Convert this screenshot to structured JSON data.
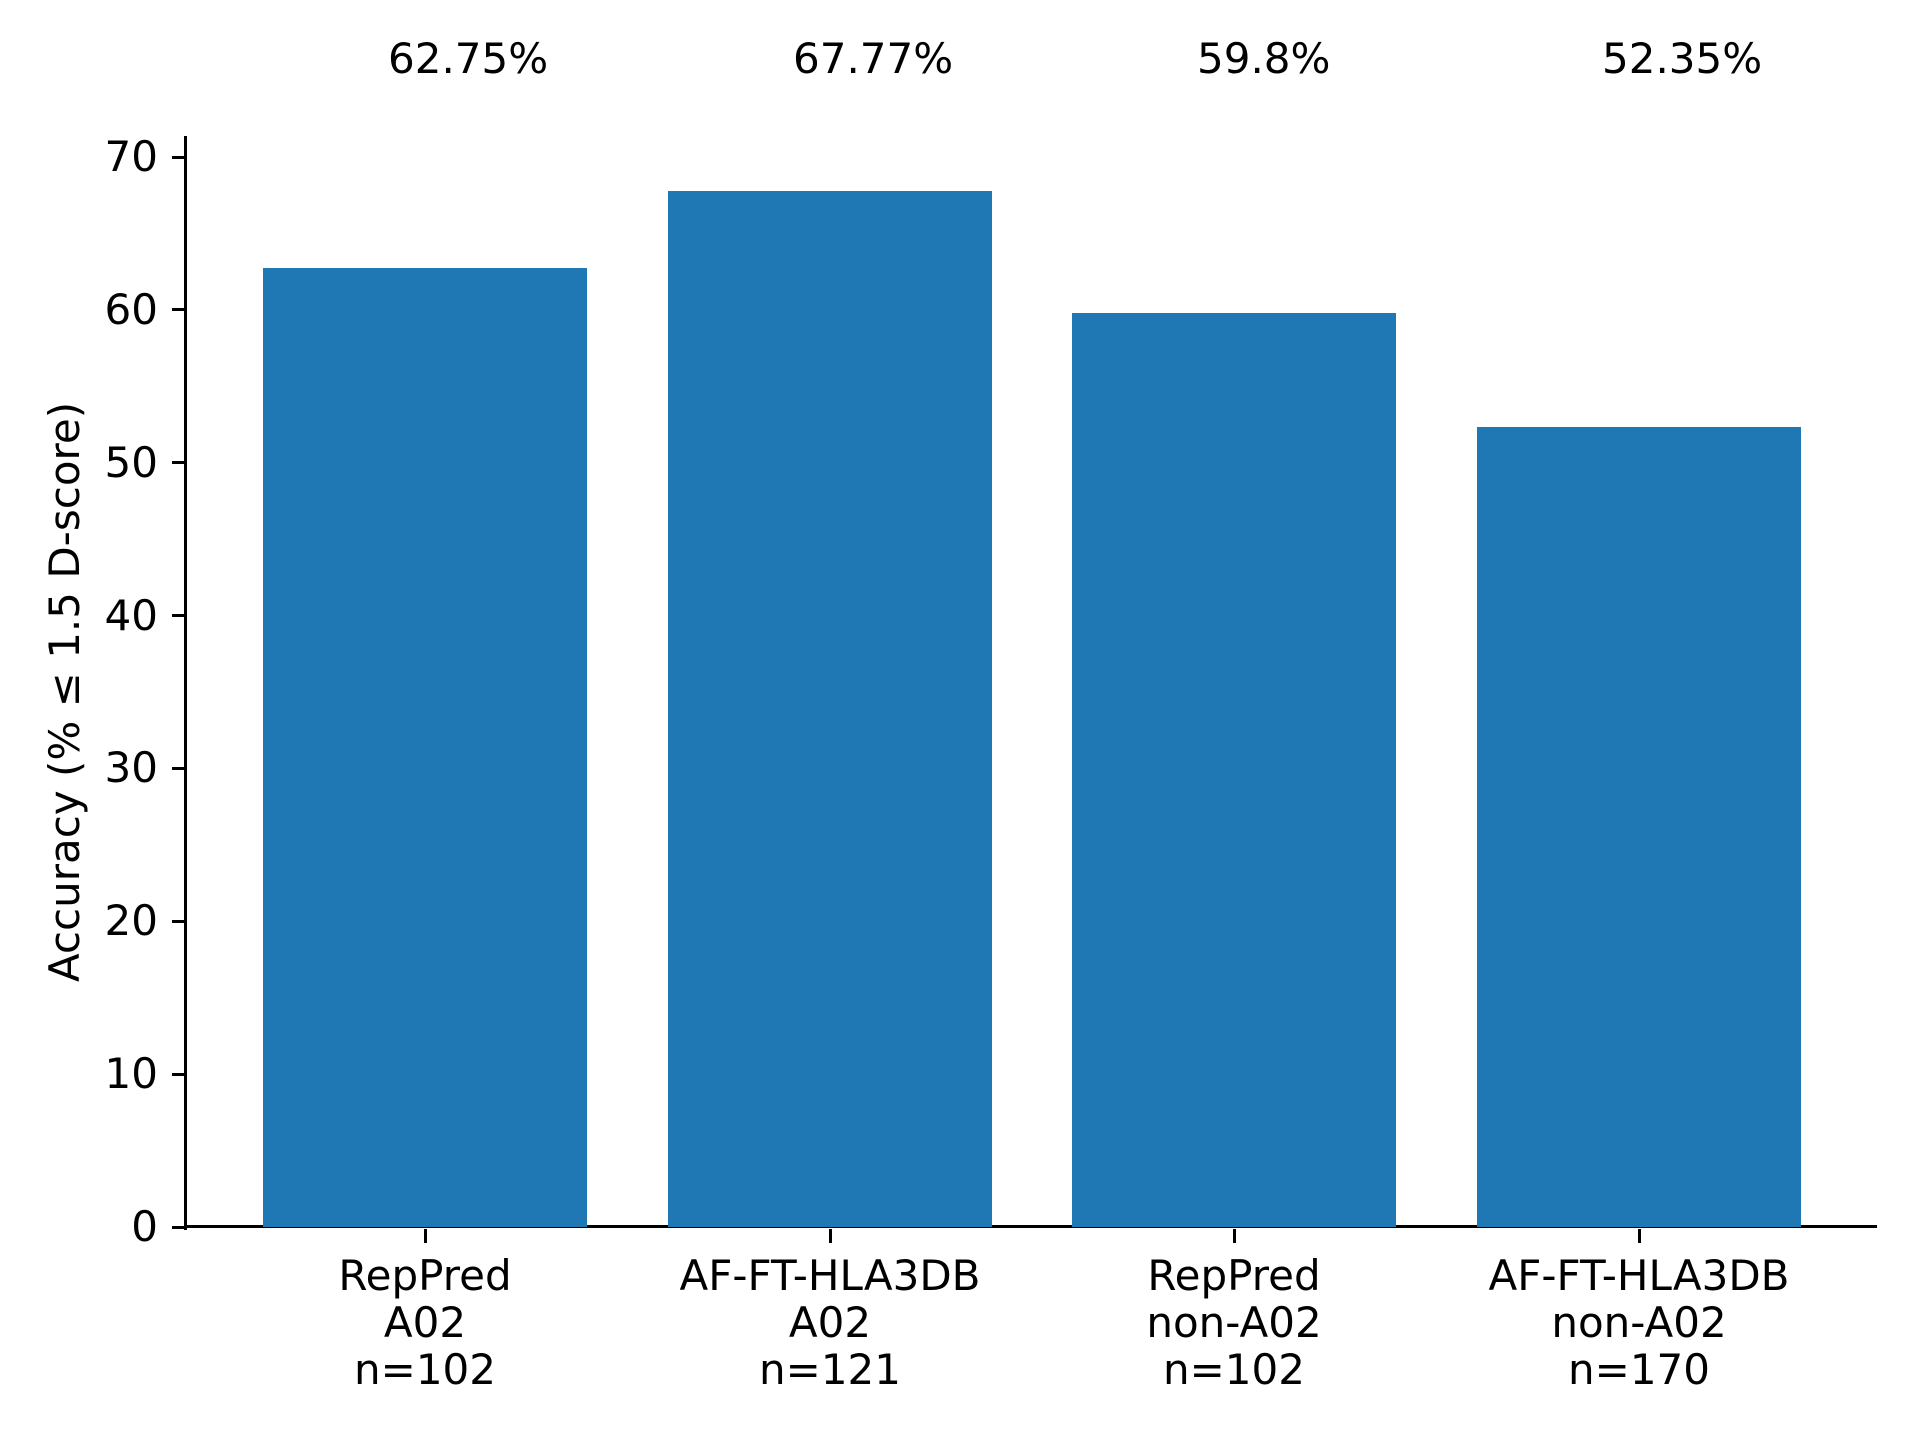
{
  "chart_data": {
    "type": "bar",
    "title": "",
    "xlabel": "",
    "ylabel": "Accuracy (% ≤ 1.5 D-score)",
    "categories": [
      [
        "RepPred",
        "A02",
        "n=102"
      ],
      [
        "AF-FT-HLA3DB",
        "A02",
        "n=121"
      ],
      [
        "RepPred",
        "non-A02",
        "n=102"
      ],
      [
        "AF-FT-HLA3DB",
        "non-A02",
        "n=170"
      ]
    ],
    "values": [
      62.75,
      67.77,
      59.8,
      52.35
    ],
    "bar_value_labels": [
      "62.75%",
      "67.77%",
      "59.8%",
      "52.35%"
    ],
    "yticks": [
      0,
      10,
      20,
      30,
      40,
      50,
      60,
      70
    ],
    "ytick_labels": [
      "0",
      "10",
      "20",
      "30",
      "40",
      "50",
      "60",
      "70"
    ],
    "ylim": [
      0,
      71.4
    ],
    "bar_color": "#1f77b4",
    "axis_color": "#000000",
    "text_color": "#000000",
    "grid": false,
    "legend": "none"
  }
}
